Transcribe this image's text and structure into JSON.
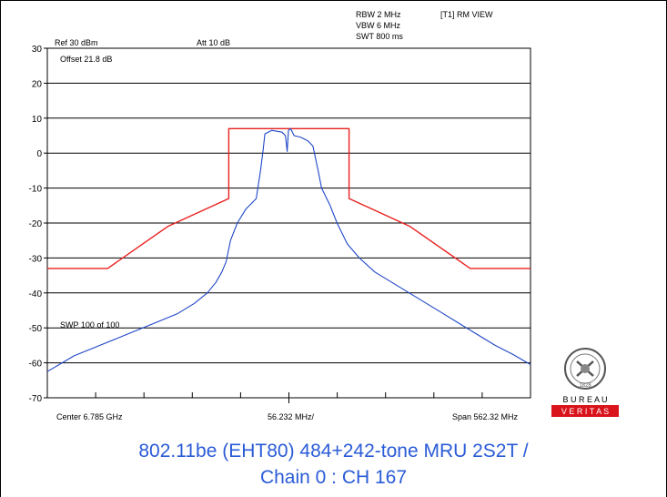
{
  "header": {
    "rbw": "RBW 2 MHz",
    "vbw": "VBW 6 MHz",
    "swt": "SWT 800 ms",
    "trace": "[T1] RM VIEW",
    "ref": "Ref 30 dBm",
    "att": "Att  10 dB",
    "offset": "Offset 21.8 dB",
    "sweep": "SWP 100 of 100"
  },
  "footer": {
    "center": "Center 6.785 GHz",
    "div": "56.232 MHz/",
    "span": "Span 562.32 MHz"
  },
  "caption": {
    "line1": "802.11be (EHT80) 484+242-tone MRU 2S2T /",
    "line2": "Chain 0 : CH 167"
  },
  "logo": {
    "text1": "B U R E A U",
    "text2": "V E R I T A S",
    "year": "1828"
  },
  "colors": {
    "mask": "#e8201e",
    "trace": "#1f46c8",
    "caption": "#2a5bd7",
    "logo_red": "#d9141b"
  },
  "chart_data": {
    "type": "line",
    "x_unit": "MHz offset from center",
    "y_unit": "dBm",
    "xlim": [
      -281.16,
      281.16
    ],
    "ylim": [
      -70,
      30
    ],
    "yticks": [
      "30",
      "20",
      "10",
      "0",
      "-10",
      "-20",
      "-30",
      "-40",
      "-50",
      "-60",
      "-70"
    ],
    "grid": true,
    "series": [
      {
        "name": "mask",
        "color": "#e8201e",
        "points": [
          [
            -281.16,
            -33
          ],
          [
            -211,
            -33
          ],
          [
            -141,
            -21
          ],
          [
            -70,
            -13
          ],
          [
            -70,
            7
          ],
          [
            70,
            7
          ],
          [
            70,
            -13
          ],
          [
            141,
            -21
          ],
          [
            211,
            -33
          ],
          [
            281.16,
            -33
          ]
        ]
      },
      {
        "name": "trace",
        "color": "#1f46c8",
        "points": [
          [
            -281.16,
            -62.5
          ],
          [
            -250,
            -58
          ],
          [
            -220,
            -55
          ],
          [
            -190,
            -52
          ],
          [
            -160,
            -49
          ],
          [
            -130,
            -46
          ],
          [
            -110,
            -43
          ],
          [
            -95,
            -40
          ],
          [
            -85,
            -37
          ],
          [
            -78,
            -34
          ],
          [
            -73,
            -31
          ],
          [
            -68,
            -25
          ],
          [
            -60,
            -20
          ],
          [
            -50,
            -16
          ],
          [
            -38,
            -13
          ],
          [
            -33,
            -5
          ],
          [
            -30,
            1
          ],
          [
            -28,
            5.5
          ],
          [
            -20,
            6.5
          ],
          [
            -8,
            6
          ],
          [
            -4,
            5
          ],
          [
            -2,
            0.5
          ],
          [
            -0.5,
            6.5
          ],
          [
            2,
            7
          ],
          [
            6,
            5
          ],
          [
            14,
            4.5
          ],
          [
            22,
            3.5
          ],
          [
            28,
            2
          ],
          [
            34,
            -5
          ],
          [
            38,
            -10
          ],
          [
            48,
            -15
          ],
          [
            56,
            -20
          ],
          [
            68,
            -26
          ],
          [
            82,
            -30
          ],
          [
            100,
            -34
          ],
          [
            120,
            -37
          ],
          [
            140,
            -40
          ],
          [
            160,
            -43
          ],
          [
            180,
            -46
          ],
          [
            200,
            -49
          ],
          [
            220,
            -52
          ],
          [
            240,
            -55
          ],
          [
            260,
            -57.5
          ],
          [
            281.16,
            -60.5
          ]
        ]
      }
    ]
  }
}
